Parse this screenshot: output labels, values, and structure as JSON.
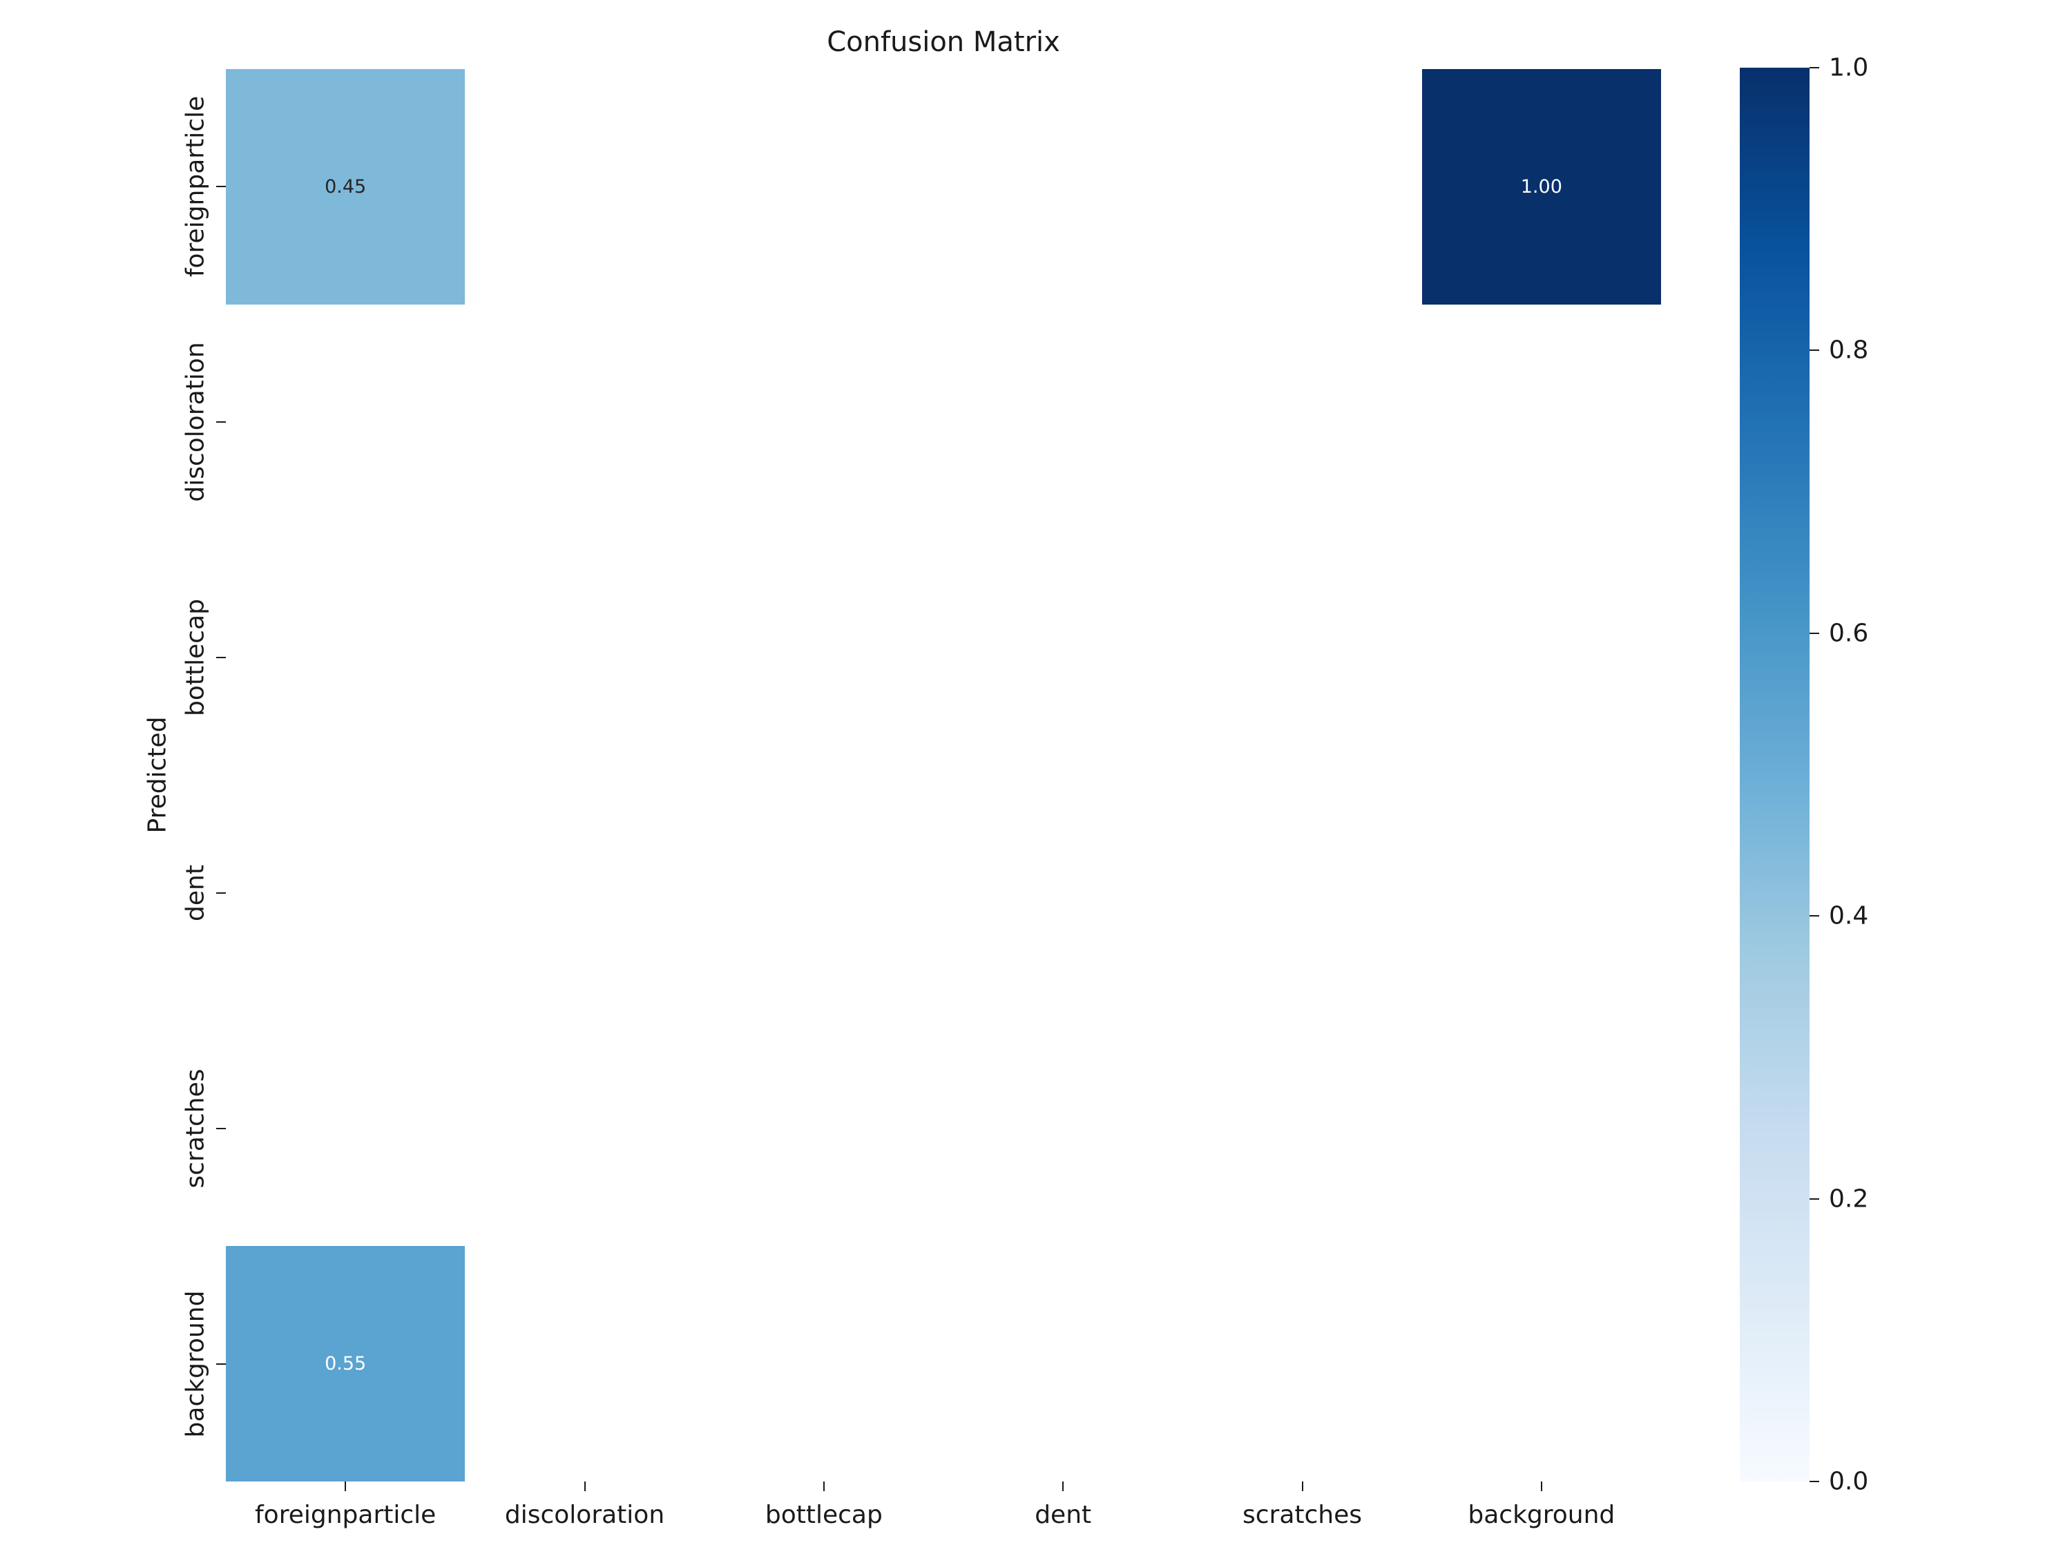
{
  "title": "Confusion Matrix",
  "ylabel": "Predicted",
  "chart_data": {
    "type": "heatmap",
    "title": "Confusion Matrix",
    "xlabel": "",
    "ylabel": "Predicted",
    "colormap": "Blues",
    "value_range": [
      0.0,
      1.0
    ],
    "x_categories": [
      "foreignparticle",
      "discoloration",
      "bottlecap",
      "dent",
      "scratches",
      "background"
    ],
    "y_categories": [
      "foreignparticle",
      "discoloration",
      "bottlecap",
      "dent",
      "scratches",
      "background"
    ],
    "matrix": [
      [
        0.45,
        null,
        null,
        null,
        null,
        1.0
      ],
      [
        null,
        null,
        null,
        null,
        null,
        null
      ],
      [
        null,
        null,
        null,
        null,
        null,
        null
      ],
      [
        null,
        null,
        null,
        null,
        null,
        null
      ],
      [
        null,
        null,
        null,
        null,
        null,
        null
      ],
      [
        0.55,
        null,
        null,
        null,
        null,
        null
      ]
    ],
    "annotation_format": "2-decimals",
    "annotation_colors": {
      "light_cell_text": "#262626",
      "dark_cell_text": "#ffffff"
    },
    "colormap_stops": [
      [
        0.0,
        "#f7fbff"
      ],
      [
        0.125,
        "#deebf7"
      ],
      [
        0.25,
        "#c6dbef"
      ],
      [
        0.375,
        "#9ecae1"
      ],
      [
        0.5,
        "#6baed6"
      ],
      [
        0.625,
        "#4292c6"
      ],
      [
        0.75,
        "#2171b5"
      ],
      [
        0.875,
        "#08519c"
      ],
      [
        1.0,
        "#08306b"
      ]
    ],
    "colorbar": {
      "position": "right",
      "tick_labels": [
        "1.0",
        "0.8",
        "0.6",
        "0.4",
        "0.2",
        "0.0"
      ],
      "tick_values": [
        1.0,
        0.8,
        0.6,
        0.4,
        0.2,
        0.0
      ]
    },
    "grid": false,
    "legend": false
  }
}
